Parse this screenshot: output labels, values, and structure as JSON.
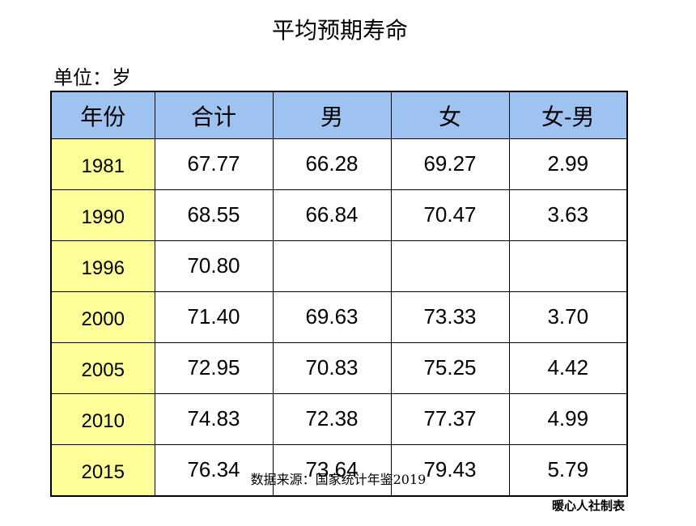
{
  "chart_data": {
    "type": "table",
    "title": "平均预期寿命",
    "unit_label": "单位：岁",
    "columns": [
      "年份",
      "合计",
      "男",
      "女",
      "女-男"
    ],
    "rows": [
      {
        "year": "1981",
        "total": "67.77",
        "male": "66.28",
        "female": "69.27",
        "diff": "2.99"
      },
      {
        "year": "1990",
        "total": "68.55",
        "male": "66.84",
        "female": "70.47",
        "diff": "3.63"
      },
      {
        "year": "1996",
        "total": "70.80",
        "male": "",
        "female": "",
        "diff": ""
      },
      {
        "year": "2000",
        "total": "71.40",
        "male": "69.63",
        "female": "73.33",
        "diff": "3.70"
      },
      {
        "year": "2005",
        "total": "72.95",
        "male": "70.83",
        "female": "75.25",
        "diff": "4.42"
      },
      {
        "year": "2010",
        "total": "74.83",
        "male": "72.38",
        "female": "77.37",
        "diff": "4.99"
      },
      {
        "year": "2015",
        "total": "76.34",
        "male": "73.64",
        "female": "79.43",
        "diff": "5.79"
      }
    ],
    "colors": {
      "header_background": "#9ec3f0",
      "year_column_background": "#ffff99"
    }
  },
  "footer": {
    "source": "数据来源：国家统计年鉴2019",
    "credit": "暖心人社制表"
  }
}
